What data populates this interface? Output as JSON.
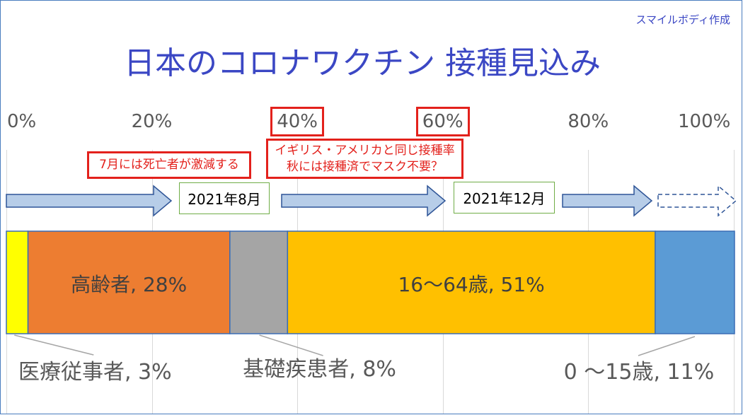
{
  "credit": "スマイルボディ作成",
  "theme": {
    "title_color": "#3b47c4",
    "annotation_color": "#e3211c",
    "milestone_border": "#70ad47",
    "arrow_fill": "#b7cde8",
    "arrow_stroke": "#2f5597",
    "bar_outline": "#3a6db5",
    "gridline_color": "#d9d9d9",
    "frame_color": "#4a7dbf",
    "leader_color": "#a6a6a6",
    "tick_color": "#595959"
  },
  "chart_data": {
    "type": "bar",
    "horizontal": true,
    "stacked": true,
    "title": "日本のコロナワクチン 接種見込み",
    "xlim": [
      0,
      100
    ],
    "xticks": [
      0,
      20,
      40,
      60,
      80,
      100
    ],
    "xtick_labels": [
      "0%",
      "20%",
      "40%",
      "60%",
      "80%",
      "100%"
    ],
    "highlighted_ticks": [
      40,
      60
    ],
    "grid": true,
    "segments": [
      {
        "label": "医療従事者, 3%",
        "value": 3,
        "color": "#ffff00"
      },
      {
        "label": "高齢者, 28%",
        "value": 28,
        "color": "#ed7d31"
      },
      {
        "label": "基礎疾患者, 8%",
        "value": 8,
        "color": "#a5a5a5"
      },
      {
        "label": "16～64歳, 51%",
        "value": 51,
        "color": "#ffc000"
      },
      {
        "label": "0 ～15歳, 11%",
        "value": 11,
        "color": "#5b9bd5"
      }
    ],
    "timeline": [
      "2021年8月",
      "2021年12月"
    ],
    "annotations": [
      {
        "lines": [
          "7月には死亡者が激減する"
        ]
      },
      {
        "lines": [
          "イギリス・アメリカと同じ接種率",
          "秋には接種済でマスク不要？"
        ]
      }
    ]
  }
}
